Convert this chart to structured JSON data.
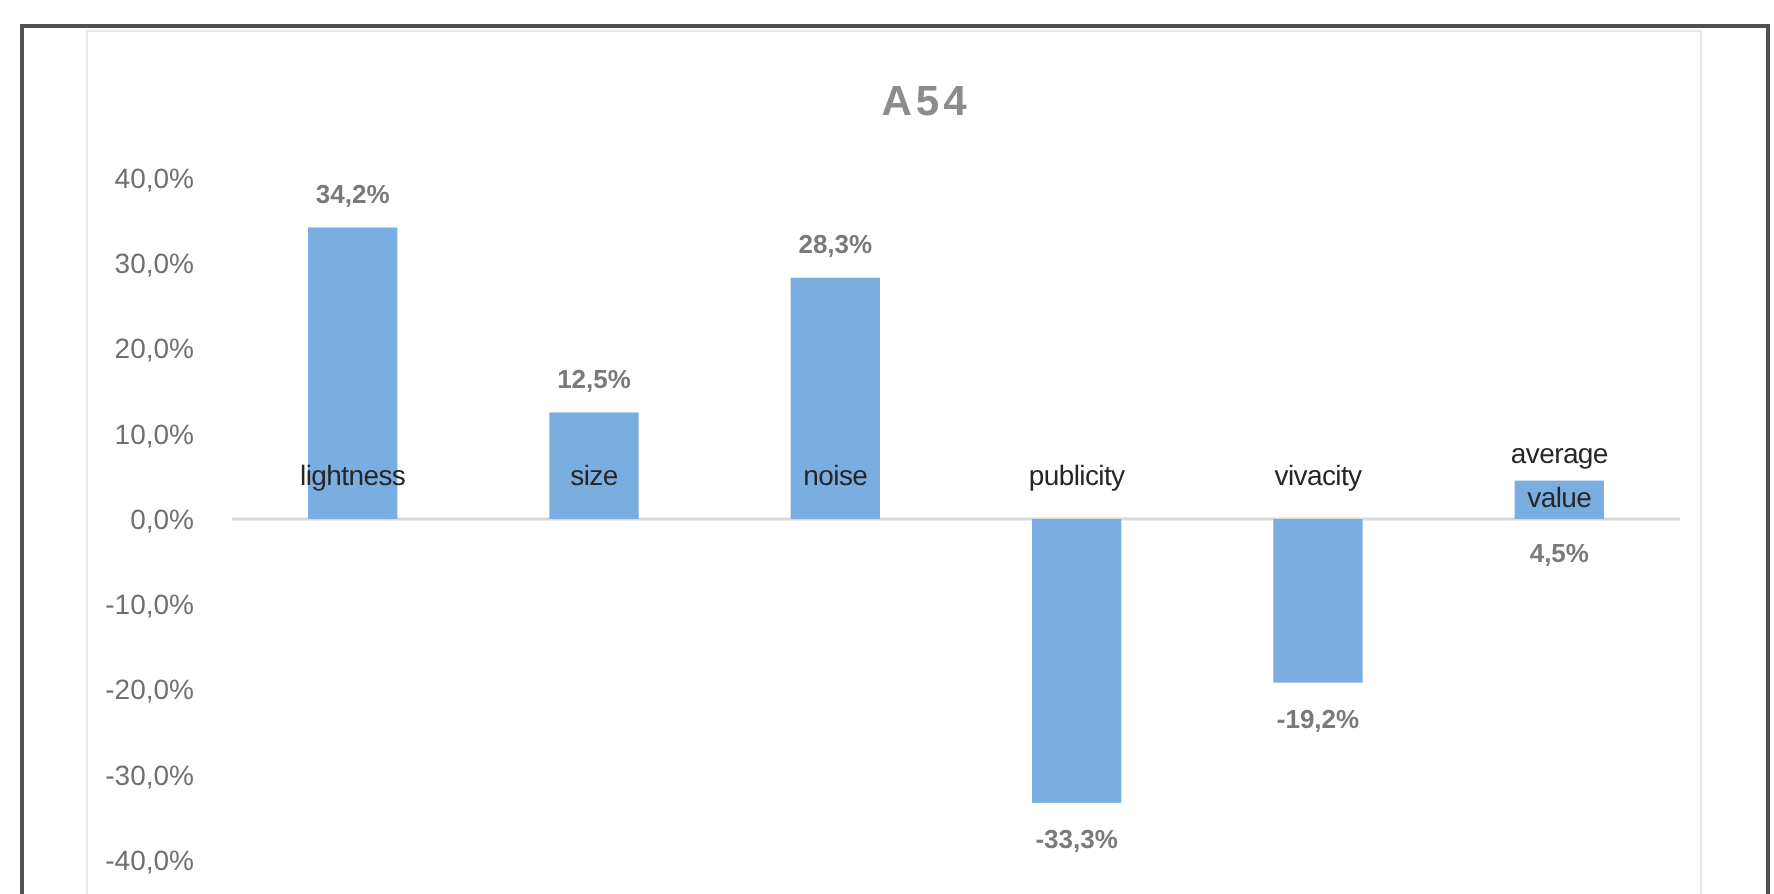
{
  "chart_data": {
    "type": "bar",
    "title": "A54",
    "categories": [
      "lightness",
      "size",
      "noise",
      "publicity",
      "vivacity",
      "average value"
    ],
    "values": [
      34.2,
      12.5,
      28.3,
      -33.3,
      -19.2,
      4.5
    ],
    "color": "#7aade0",
    "ylim": [
      -40,
      40
    ],
    "yticks": [
      {
        "value": -40,
        "label": "-40,0%"
      },
      {
        "value": -30,
        "label": "-30,0%"
      },
      {
        "value": -20,
        "label": "-20,0%"
      },
      {
        "value": -10,
        "label": "-10,0%"
      },
      {
        "value": 0,
        "label": "0,0%"
      },
      {
        "value": 10,
        "label": "10,0%"
      },
      {
        "value": 20,
        "label": "20,0%"
      },
      {
        "value": 30,
        "label": "30,0%"
      },
      {
        "value": 40,
        "label": "40,0%"
      }
    ],
    "value_labels": [
      "34,2%",
      "12,5%",
      "28,3%",
      "-33,3%",
      "-19,2%",
      "4,5%"
    ]
  }
}
